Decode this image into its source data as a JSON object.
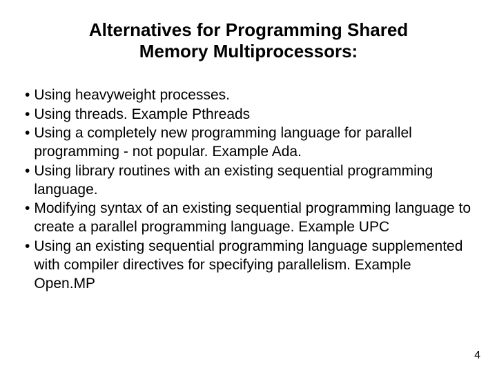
{
  "title_line1": "Alternatives for Programming Shared",
  "title_line2": "Memory Multiprocessors:",
  "bullets": [
    {
      "text": "Using heavyweight processes."
    },
    {
      "text": "Using threads. Example Pthreads"
    },
    {
      "text": "Using a completely new programming language for parallel programming - not popular. Example Ada."
    },
    {
      "text": "Using library routines with an existing sequential programming language."
    },
    {
      "text": "Modifying syntax of an existing sequential programming language to create a parallel programming language. Example UPC"
    },
    {
      "text": "Using an existing sequential programming language supplemented with compiler directives for specifying parallelism. Example Open.MP"
    }
  ],
  "page_number": "4",
  "styling": {
    "background_color": "#ffffff",
    "text_color": "#000000",
    "title_fontsize": 26,
    "title_fontweight": "bold",
    "body_fontsize": 21,
    "pagenum_fontsize": 16,
    "font_family": "Arial"
  }
}
